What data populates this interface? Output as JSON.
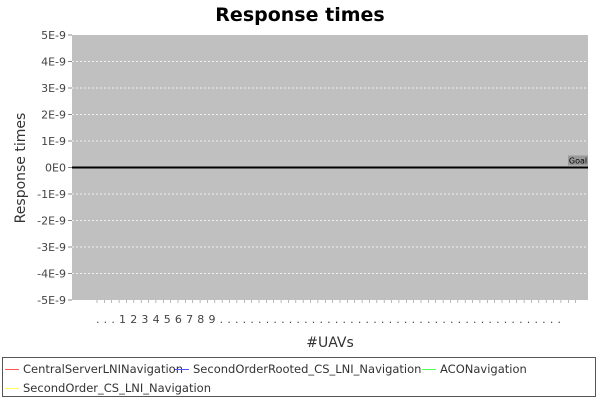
{
  "chart_data": {
    "type": "line",
    "title": "Response times",
    "xlabel": "#UAVs",
    "ylabel": "Response times",
    "ylim": [
      -5e-09,
      5e-09
    ],
    "y_ticks": [
      "5E-9",
      "4E-9",
      "3E-9",
      "2E-9",
      "1E-9",
      "0E0",
      "-1E-9",
      "-2E-9",
      "-3E-9",
      "-4E-9",
      "-5E-9"
    ],
    "x_tick_labels": [
      "...",
      "1",
      "2",
      "3",
      "4",
      "5",
      "6",
      "7",
      "8",
      "9",
      "..."
    ],
    "grid": true,
    "legend_position": "bottom",
    "goal": {
      "label": "Goal",
      "value": 0
    },
    "series": [
      {
        "name": "CentralServerLNINavigation",
        "color": "#ff5555",
        "values": []
      },
      {
        "name": "SecondOrderRooted_CS_LNI_Navigation",
        "color": "#5555ff",
        "values": []
      },
      {
        "name": "ACONavigation",
        "color": "#55ff55",
        "values": []
      },
      {
        "name": "SecondOrder_CS_LNI_Navigation",
        "color": "#ffff55",
        "values": []
      }
    ],
    "colors": {
      "plot_background": "#c0c0c0",
      "gridline": "#ffffff",
      "goal_line": "#000000",
      "goal_label_bg": "#999999"
    }
  }
}
